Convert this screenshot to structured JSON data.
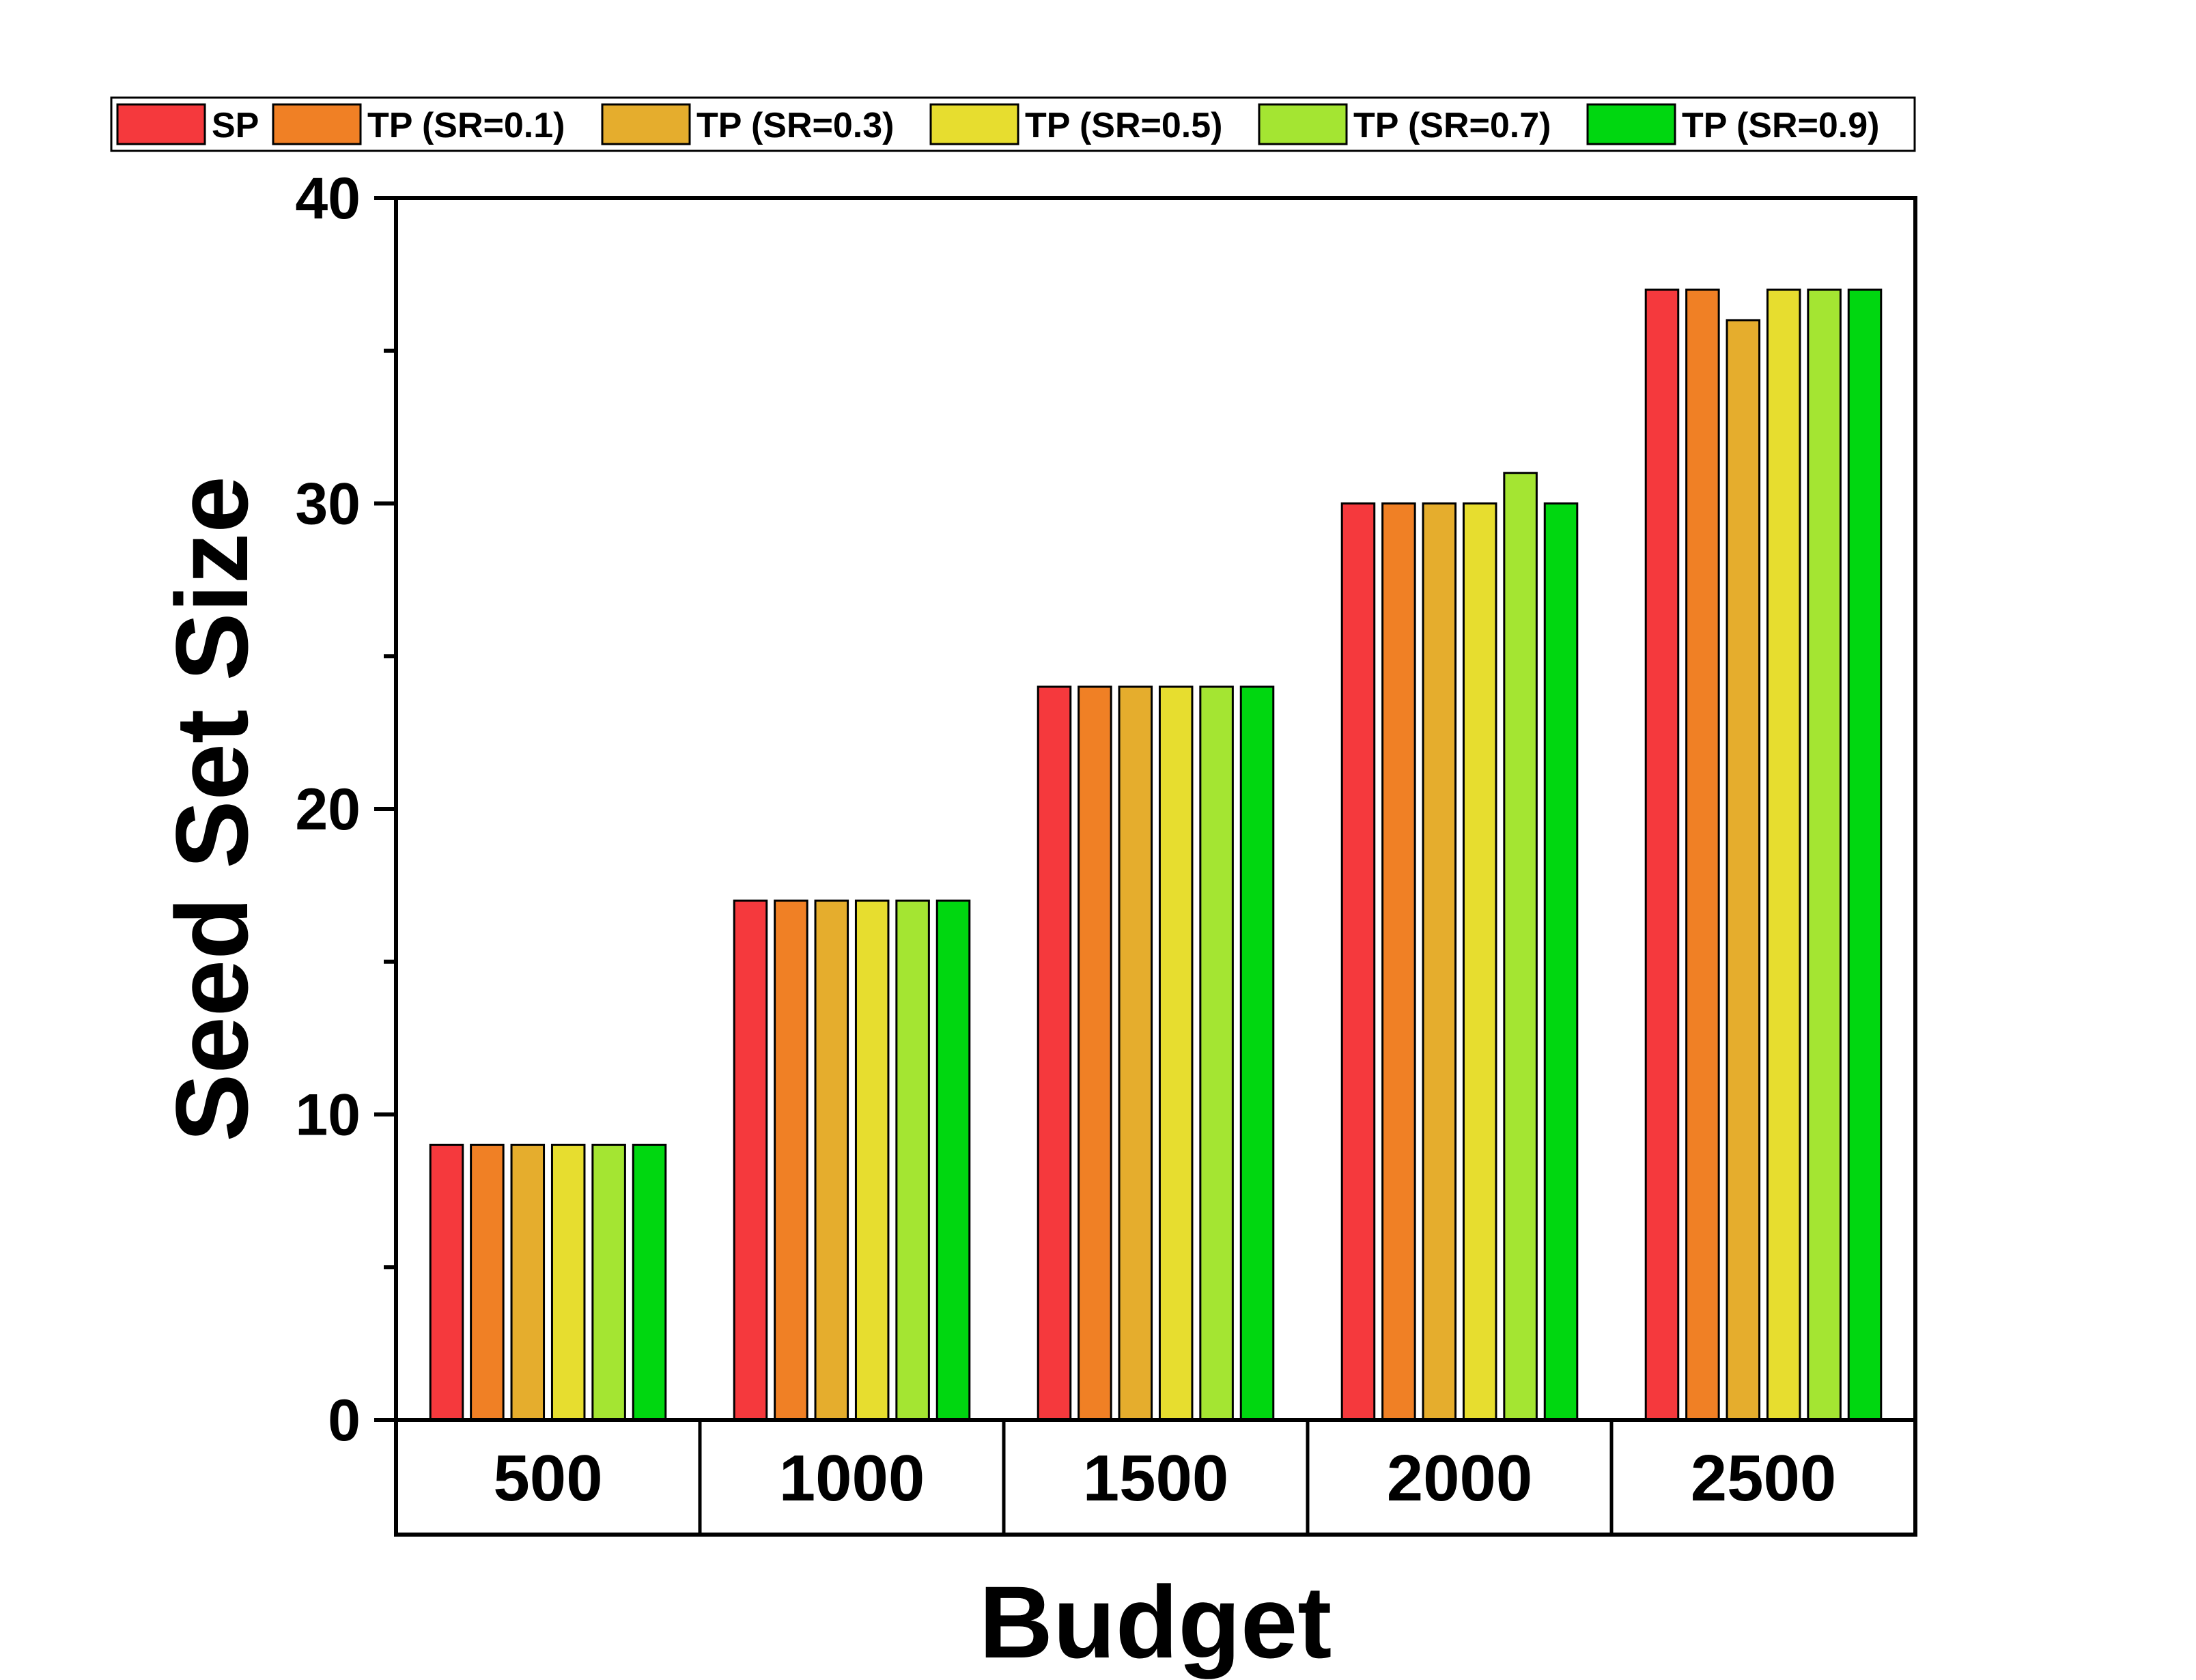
{
  "chart_data": {
    "type": "bar",
    "title": "",
    "xlabel": "Budget",
    "ylabel": "Seed Set Size",
    "ylim": [
      0,
      40
    ],
    "yticks": [
      0,
      10,
      20,
      30,
      40
    ],
    "grid": false,
    "legend_position": "top",
    "categories": [
      "500",
      "1000",
      "1500",
      "2000",
      "2500"
    ],
    "series": [
      {
        "name": "SP",
        "color": "#f5393d",
        "values": [
          9,
          17,
          24,
          30,
          37
        ]
      },
      {
        "name": "TP (SR=0.1)",
        "color": "#f08025",
        "values": [
          9,
          17,
          24,
          30,
          37
        ]
      },
      {
        "name": "TP (SR=0.3)",
        "color": "#e5ad2d",
        "values": [
          9,
          17,
          24,
          30,
          36
        ]
      },
      {
        "name": "TP (SR=0.5)",
        "color": "#e7dd2f",
        "values": [
          9,
          17,
          24,
          30,
          37
        ]
      },
      {
        "name": "TP (SR=0.7)",
        "color": "#a4e532",
        "values": [
          9,
          17,
          24,
          31,
          37
        ]
      },
      {
        "name": "TP (SR=0.9)",
        "color": "#00d710",
        "values": [
          9,
          17,
          24,
          30,
          37
        ]
      }
    ]
  }
}
